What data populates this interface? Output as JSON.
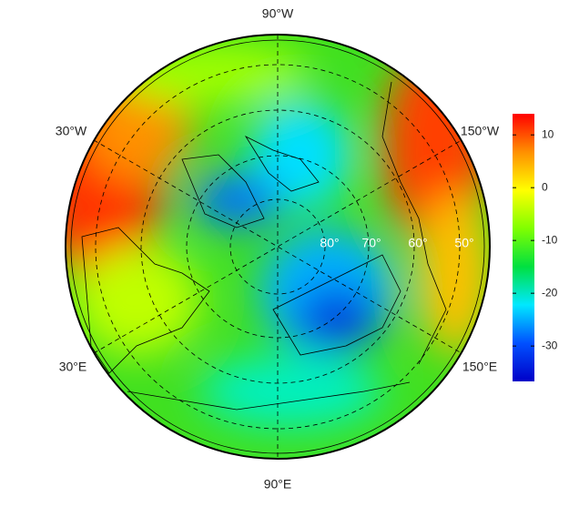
{
  "map": {
    "longitude_labels": [
      "90°W",
      "30°W",
      "150°W",
      "30°E",
      "150°E",
      "90°E"
    ],
    "latitude_labels": [
      "80°",
      "70°",
      "60°",
      "50°"
    ]
  },
  "colorbar": {
    "lim": [
      -36.7,
      14
    ],
    "ticks": [
      10,
      0,
      -10,
      -20,
      -30
    ],
    "colors": [
      "#0000c8",
      "#0050ff",
      "#00e8ff",
      "#00e040",
      "#80ff00",
      "#ffff00",
      "#ff9000",
      "#ff0000"
    ]
  }
}
